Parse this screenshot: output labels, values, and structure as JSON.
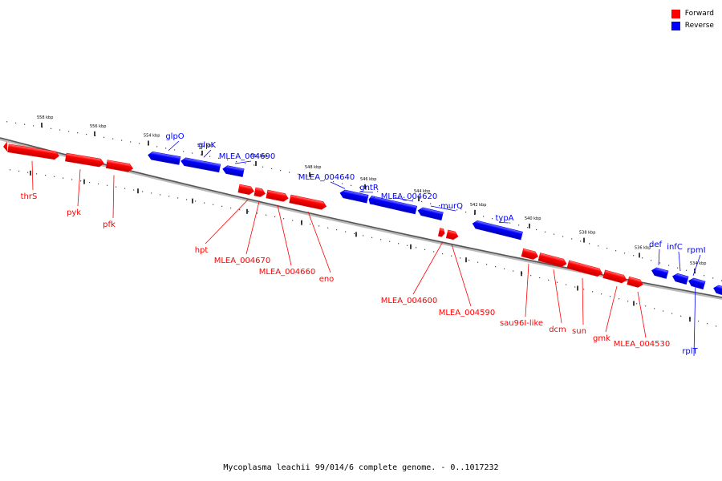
{
  "legend": {
    "forward_label": "Forward",
    "reverse_label": "Reverse",
    "forward_color": "#ff0000",
    "reverse_color": "#0000ff"
  },
  "caption": "Mycoplasma leachii 99/014/6 complete genome. - 0..1017232",
  "tick_labels": [
    "558 kbp",
    "556 kbp",
    "554 kbp",
    "552 kbp",
    "550 kbp",
    "548 kbp",
    "546 kbp",
    "544 kbp",
    "542 kbp",
    "540 kbp",
    "538 kbp",
    "536 kbp",
    "534 kbp"
  ],
  "genes": [
    {
      "name": "thrS",
      "strand": "forward"
    },
    {
      "name": "pyk",
      "strand": "forward"
    },
    {
      "name": "pfk",
      "strand": "forward"
    },
    {
      "name": "glpO",
      "strand": "reverse"
    },
    {
      "name": "glpK",
      "strand": "reverse"
    },
    {
      "name": "MLEA_004690",
      "strand": "reverse"
    },
    {
      "name": "hpt",
      "strand": "forward"
    },
    {
      "name": "MLEA_004670",
      "strand": "forward"
    },
    {
      "name": "MLEA_004660",
      "strand": "forward"
    },
    {
      "name": "eno",
      "strand": "forward"
    },
    {
      "name": "MLEA_004640",
      "strand": "reverse"
    },
    {
      "name": "gntR",
      "strand": "reverse"
    },
    {
      "name": "MLEA_004620",
      "strand": "reverse"
    },
    {
      "name": "murQ",
      "strand": "reverse"
    },
    {
      "name": "MLEA_004600",
      "strand": "forward"
    },
    {
      "name": "MLEA_004590",
      "strand": "forward"
    },
    {
      "name": "typA",
      "strand": "reverse"
    },
    {
      "name": "sau96I-like",
      "strand": "forward"
    },
    {
      "name": "dcm",
      "strand": "forward"
    },
    {
      "name": "sun",
      "strand": "forward"
    },
    {
      "name": "gmk",
      "strand": "forward"
    },
    {
      "name": "MLEA_004530",
      "strand": "forward"
    },
    {
      "name": "def",
      "strand": "reverse"
    },
    {
      "name": "infC",
      "strand": "reverse"
    },
    {
      "name": "rpmI",
      "strand": "reverse"
    },
    {
      "name": "rplT",
      "strand": "reverse"
    }
  ]
}
